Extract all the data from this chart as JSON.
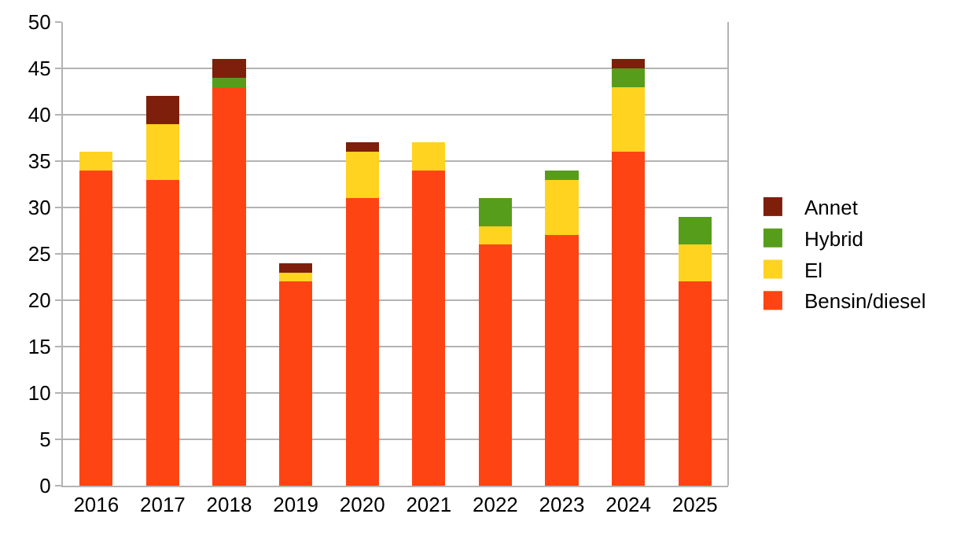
{
  "chart_data": {
    "type": "bar",
    "stacked": true,
    "categories": [
      "2016",
      "2017",
      "2018",
      "2019",
      "2020",
      "2021",
      "2022",
      "2023",
      "2024",
      "2025"
    ],
    "series": [
      {
        "name": "Bensin/diesel",
        "color": "#ff4413",
        "values": [
          34,
          33,
          43,
          22,
          31,
          34,
          26,
          27,
          36,
          22
        ]
      },
      {
        "name": "El",
        "color": "#ffd320",
        "values": [
          2,
          6,
          null,
          1,
          5,
          3,
          2,
          6,
          7,
          4
        ]
      },
      {
        "name": "Hybrid",
        "color": "#579d1c",
        "values": [
          null,
          null,
          1,
          null,
          null,
          null,
          3,
          1,
          2,
          3
        ]
      },
      {
        "name": "Annet",
        "color": "#7e1f0b",
        "values": [
          null,
          3,
          2,
          1,
          1,
          null,
          null,
          null,
          1,
          null
        ]
      }
    ],
    "ylim": [
      0,
      50
    ],
    "yticks": [
      0,
      5,
      10,
      15,
      20,
      25,
      30,
      35,
      40,
      45,
      50
    ],
    "grid": "y",
    "legend": "right"
  }
}
